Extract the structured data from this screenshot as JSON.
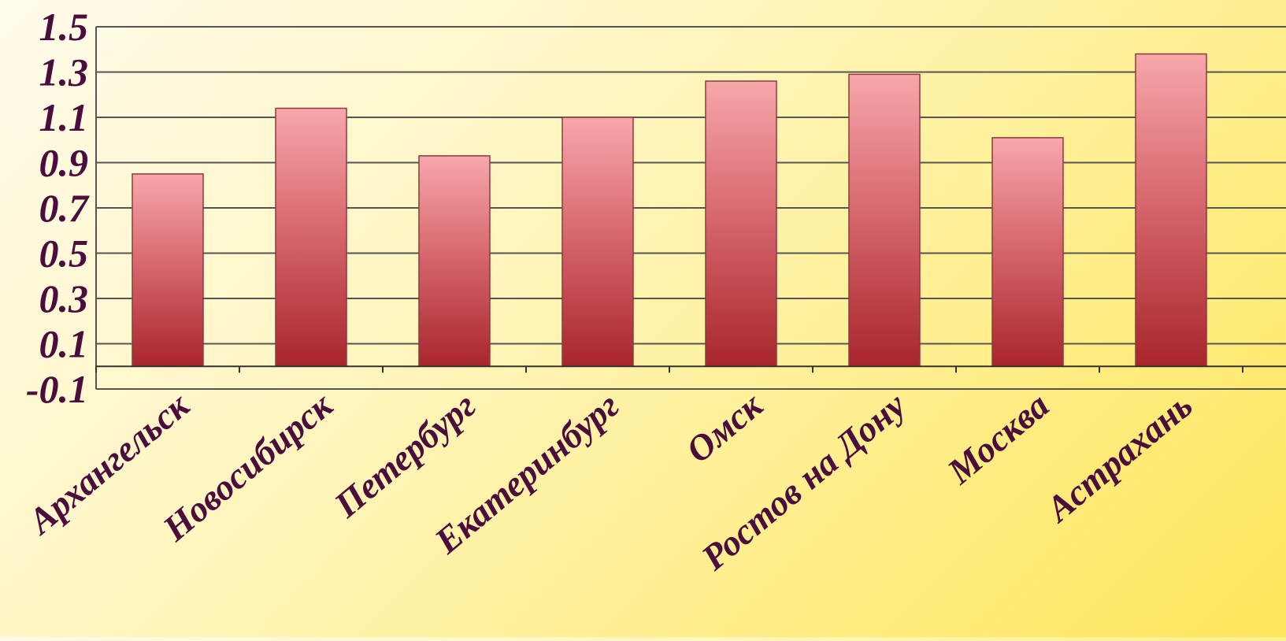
{
  "chart_data": {
    "type": "bar",
    "categories": [
      "Архангельск",
      "Новосибирск",
      "Петербург",
      "Екатеринбург",
      "Омск",
      "Ростов на Дону",
      "Москва",
      "Астрахань"
    ],
    "values": [
      0.85,
      1.14,
      0.93,
      1.1,
      1.26,
      1.29,
      1.01,
      1.38
    ],
    "ylim": [
      -0.1,
      1.5
    ],
    "yticks": [
      "1.5",
      "1.3",
      "1.1",
      "0.9",
      "0.7",
      "0.5",
      "0.3",
      "0.1",
      "-0.1"
    ],
    "grid": true,
    "title": "",
    "xlabel": "",
    "ylabel": "",
    "colors": {
      "bar_top": "#f7a7ab",
      "bar_bottom": "#a8262c",
      "bar_stroke": "#8c3a3e",
      "grid": "#555555",
      "text": "#4a0d3e"
    }
  }
}
